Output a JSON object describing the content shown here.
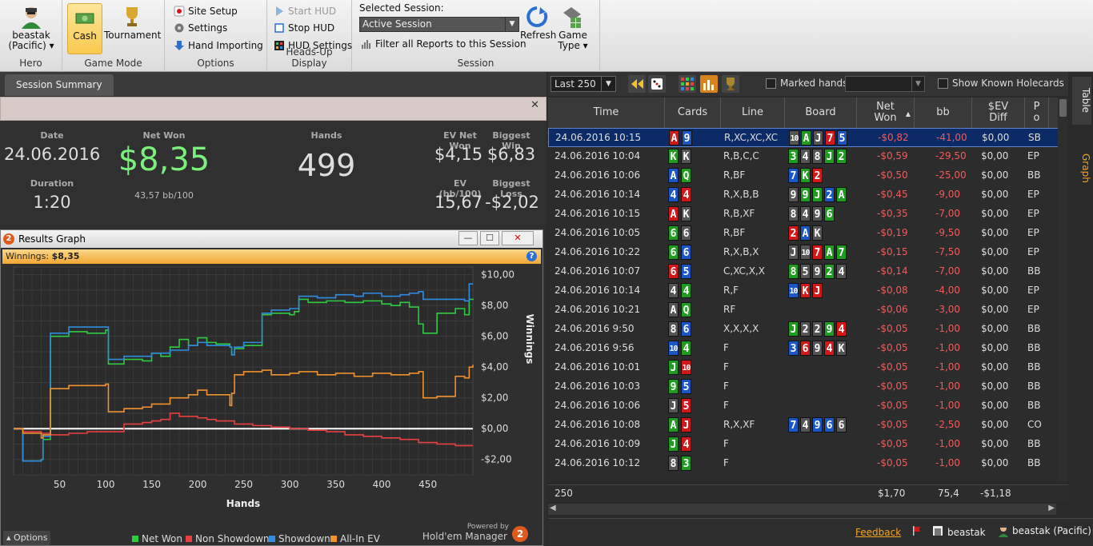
{
  "ribbon": {
    "hero": {
      "label": "beastak\n(Pacific)",
      "line1": "beastak",
      "line2": "(Pacific) ▾",
      "group": "Hero"
    },
    "game_mode": {
      "cash": "Cash",
      "tournament": "Tournament",
      "group": "Game Mode"
    },
    "options": {
      "site_setup": "Site Setup",
      "settings": "Settings",
      "hand_importing": "Hand Importing",
      "group": "Options"
    },
    "hud": {
      "start": "Start HUD",
      "stop": "Stop HUD",
      "settings": "HUD Settings",
      "group": "Heads-Up Display"
    },
    "session": {
      "selected_label": "Selected Session:",
      "selected_value": "Active Session",
      "filter": "Filter all Reports to this Session",
      "refresh": "Refresh",
      "game_type_1": "Game",
      "game_type_2": "Type ▾",
      "group": "Session"
    }
  },
  "left": {
    "tab": "Session Summary",
    "summary": {
      "date_label": "Date",
      "date": "24.06.2016",
      "duration_label": "Duration",
      "duration": "1:20",
      "net_won_label": "Net Won",
      "net_won": "$8,35",
      "bb100": "43,57 bb/100",
      "hands_label": "Hands",
      "hands": "499",
      "ev_net_won_label": "EV Net Won",
      "ev_net_won": "$4,15",
      "biggest_win_label": "Biggest Win",
      "biggest_win": "$6,83",
      "ev_bb100_label": "EV (bb/100)",
      "ev_bb100": "15,67",
      "biggest_loss_label": "Biggest Loss",
      "biggest_loss": "-$2,02"
    },
    "graph_window": {
      "title": "Results Graph",
      "winnings_label": "Winnings: ",
      "winnings_value": "$8,35",
      "options": "Options",
      "powered_by": "Powered by",
      "brand": "Hold'em Manager"
    }
  },
  "chart_data": {
    "type": "line",
    "xlabel": "Hands",
    "ylabel": "Winnings",
    "xlim": [
      0,
      499
    ],
    "ylim": [
      -3,
      10.5
    ],
    "x_ticks": [
      50,
      100,
      150,
      200,
      250,
      300,
      350,
      400,
      450
    ],
    "y_ticks": [
      10,
      8,
      6,
      4,
      2,
      0,
      -2
    ],
    "y_tick_labels": [
      "$10,00",
      "$8,00",
      "$6,00",
      "$4,00",
      "$2,00",
      "$0,00",
      "-$2,00"
    ],
    "legend_position": "bottom-right",
    "series": [
      {
        "name": "Net Won",
        "color": "#2ecc40",
        "x": [
          0,
          8,
          10,
          30,
          32,
          40,
          60,
          80,
          100,
          103,
          120,
          140,
          150,
          160,
          170,
          180,
          190,
          200,
          210,
          220,
          235,
          237,
          240,
          250,
          260,
          270,
          280,
          300,
          305,
          310,
          320,
          340,
          360,
          380,
          400,
          410,
          420,
          430,
          440,
          445,
          460,
          480,
          490,
          495,
          499
        ],
        "y": [
          0,
          0,
          -2.1,
          -2,
          -0.7,
          6,
          6.3,
          6.2,
          6.4,
          4.2,
          4.5,
          4.4,
          4.9,
          4.7,
          5.3,
          5.8,
          5.4,
          5.9,
          5.6,
          5.5,
          5.3,
          4.8,
          5.2,
          5.4,
          5.4,
          7.4,
          7.5,
          7.4,
          7.6,
          8.4,
          8.2,
          8.3,
          8.2,
          8.3,
          8.1,
          8.0,
          8.2,
          7.9,
          6.8,
          6.2,
          7.5,
          7.8,
          7.4,
          8.4,
          8.35
        ]
      },
      {
        "name": "Non Showdown",
        "color": "#e84040",
        "x": [
          0,
          10,
          30,
          40,
          60,
          80,
          100,
          120,
          140,
          150,
          160,
          170,
          180,
          200,
          210,
          220,
          240,
          260,
          280,
          300,
          320,
          340,
          360,
          380,
          400,
          420,
          440,
          460,
          480,
          499
        ],
        "y": [
          0,
          -0.2,
          -0.3,
          -0.4,
          -0.3,
          -0.2,
          -0.2,
          0.3,
          0.4,
          0.5,
          0.6,
          1.0,
          0.8,
          0.7,
          0.6,
          0.5,
          0.3,
          0.2,
          0.1,
          0.0,
          -0.1,
          -0.2,
          -0.4,
          -0.5,
          -0.6,
          -0.7,
          -0.9,
          -1.0,
          -1.1,
          -1.1
        ]
      },
      {
        "name": "Showdown",
        "color": "#2e8de0",
        "x": [
          0,
          8,
          10,
          30,
          32,
          40,
          60,
          80,
          100,
          103,
          120,
          140,
          150,
          170,
          190,
          200,
          210,
          235,
          237,
          240,
          250,
          270,
          280,
          300,
          310,
          330,
          350,
          370,
          380,
          400,
          420,
          430,
          440,
          445,
          470,
          490,
          495,
          499
        ],
        "y": [
          0,
          0,
          -2.1,
          -2,
          -0.5,
          6.2,
          6.6,
          6.6,
          6.6,
          4.5,
          4.7,
          4.7,
          4.9,
          5.1,
          5.4,
          5.6,
          5.4,
          5.3,
          4.8,
          5.3,
          5.6,
          7.5,
          7.7,
          7.8,
          8.6,
          8.5,
          8.7,
          8.6,
          8.8,
          8.6,
          8.7,
          8.8,
          8.9,
          8.4,
          8.4,
          8.3,
          9.4,
          9.4
        ]
      },
      {
        "name": "All-In EV",
        "color": "#f0922e",
        "x": [
          0,
          10,
          30,
          32,
          40,
          60,
          80,
          100,
          103,
          120,
          140,
          150,
          170,
          190,
          200,
          210,
          235,
          237,
          240,
          250,
          270,
          280,
          300,
          310,
          330,
          350,
          370,
          390,
          410,
          430,
          440,
          445,
          460,
          480,
          490,
          495,
          499
        ],
        "y": [
          0,
          -0.3,
          -0.6,
          -0.4,
          2.6,
          2.8,
          2.8,
          2.9,
          1.1,
          1.3,
          1.4,
          1.6,
          2.0,
          2.2,
          2.5,
          2.2,
          1.5,
          2.3,
          3.5,
          3.7,
          3.8,
          3.5,
          3.6,
          3.7,
          3.5,
          3.6,
          3.4,
          3.6,
          3.5,
          3.6,
          3.7,
          2.0,
          2.1,
          3.4,
          3.3,
          4.0,
          4.15
        ]
      }
    ]
  },
  "right": {
    "range": "Last 250",
    "marked_hands": "Marked hands",
    "show_known": "Show Known Holecards",
    "columns": {
      "time": "Time",
      "cards": "Cards",
      "line": "Line",
      "board": "Board",
      "net_won": "Net\nWon",
      "net_won_1": "Net",
      "net_won_2": "Won",
      "bb": "bb",
      "ev_1": "$EV",
      "ev_2": "Diff",
      "pos_1": "P",
      "pos_2": "o"
    },
    "rows": [
      {
        "time": "24.06.2016 10:15",
        "cards": [
          [
            "A",
            "h"
          ],
          [
            "9",
            "d"
          ]
        ],
        "line": "R,XC,XC,XC",
        "board": [
          [
            "10",
            "s"
          ],
          [
            "A",
            "c"
          ],
          [
            "J",
            "s"
          ],
          [
            "7",
            "h"
          ],
          [
            "5",
            "d"
          ]
        ],
        "net": "-$0,82",
        "bb": "-41,00",
        "ev": "$0,00",
        "pos": "SB",
        "sel": true
      },
      {
        "time": "24.06.2016 10:04",
        "cards": [
          [
            "K",
            "c"
          ],
          [
            "K",
            "s"
          ]
        ],
        "line": "R,B,C,C",
        "board": [
          [
            "3",
            "c"
          ],
          [
            "4",
            "s"
          ],
          [
            "8",
            "s"
          ],
          [
            "J",
            "c"
          ],
          [
            "2",
            "c"
          ]
        ],
        "net": "-$0,59",
        "bb": "-29,50",
        "ev": "$0,00",
        "pos": "EP"
      },
      {
        "time": "24.06.2016 10:06",
        "cards": [
          [
            "A",
            "d"
          ],
          [
            "Q",
            "c"
          ]
        ],
        "line": "R,BF",
        "board": [
          [
            "7",
            "d"
          ],
          [
            "K",
            "c"
          ],
          [
            "2",
            "h"
          ]
        ],
        "net": "-$0,50",
        "bb": "-25,00",
        "ev": "$0,00",
        "pos": "BB"
      },
      {
        "time": "24.06.2016 10:14",
        "cards": [
          [
            "4",
            "d"
          ],
          [
            "4",
            "h"
          ]
        ],
        "line": "R,X,B,B",
        "board": [
          [
            "9",
            "s"
          ],
          [
            "9",
            "c"
          ],
          [
            "J",
            "c"
          ],
          [
            "2",
            "d"
          ],
          [
            "A",
            "c"
          ]
        ],
        "net": "-$0,45",
        "bb": "-9,00",
        "ev": "$0,00",
        "pos": "EP"
      },
      {
        "time": "24.06.2016 10:15",
        "cards": [
          [
            "A",
            "h"
          ],
          [
            "K",
            "s"
          ]
        ],
        "line": "R,B,XF",
        "board": [
          [
            "8",
            "s"
          ],
          [
            "4",
            "s"
          ],
          [
            "9",
            "s"
          ],
          [
            "6",
            "c"
          ]
        ],
        "net": "-$0,35",
        "bb": "-7,00",
        "ev": "$0,00",
        "pos": "EP"
      },
      {
        "time": "24.06.2016 10:05",
        "cards": [
          [
            "6",
            "c"
          ],
          [
            "6",
            "s"
          ]
        ],
        "line": "R,BF",
        "board": [
          [
            "2",
            "h"
          ],
          [
            "A",
            "d"
          ],
          [
            "K",
            "s"
          ]
        ],
        "net": "-$0,19",
        "bb": "-9,50",
        "ev": "$0,00",
        "pos": "EP"
      },
      {
        "time": "24.06.2016 10:22",
        "cards": [
          [
            "6",
            "c"
          ],
          [
            "6",
            "d"
          ]
        ],
        "line": "R,X,B,X",
        "board": [
          [
            "J",
            "s"
          ],
          [
            "10",
            "s"
          ],
          [
            "7",
            "h"
          ],
          [
            "A",
            "c"
          ],
          [
            "7",
            "c"
          ]
        ],
        "net": "-$0,15",
        "bb": "-7,50",
        "ev": "$0,00",
        "pos": "EP"
      },
      {
        "time": "24.06.2016 10:07",
        "cards": [
          [
            "6",
            "h"
          ],
          [
            "5",
            "d"
          ]
        ],
        "line": "C,XC,X,X",
        "board": [
          [
            "8",
            "c"
          ],
          [
            "5",
            "s"
          ],
          [
            "9",
            "s"
          ],
          [
            "2",
            "c"
          ],
          [
            "4",
            "s"
          ]
        ],
        "net": "-$0,14",
        "bb": "-7,00",
        "ev": "$0,00",
        "pos": "BB"
      },
      {
        "time": "24.06.2016 10:14",
        "cards": [
          [
            "4",
            "s"
          ],
          [
            "4",
            "c"
          ]
        ],
        "line": "R,F",
        "board": [
          [
            "10",
            "d"
          ],
          [
            "K",
            "h"
          ],
          [
            "J",
            "h"
          ]
        ],
        "net": "-$0,08",
        "bb": "-4,00",
        "ev": "$0,00",
        "pos": "EP"
      },
      {
        "time": "24.06.2016 10:21",
        "cards": [
          [
            "A",
            "s"
          ],
          [
            "Q",
            "c"
          ]
        ],
        "line": "RF",
        "board": [],
        "net": "-$0,06",
        "bb": "-3,00",
        "ev": "$0,00",
        "pos": "EP"
      },
      {
        "time": "24.06.2016 9:50",
        "cards": [
          [
            "8",
            "s"
          ],
          [
            "6",
            "d"
          ]
        ],
        "line": "X,X,X,X",
        "board": [
          [
            "J",
            "c"
          ],
          [
            "2",
            "s"
          ],
          [
            "2",
            "s"
          ],
          [
            "9",
            "c"
          ],
          [
            "4",
            "h"
          ]
        ],
        "net": "-$0,05",
        "bb": "-1,00",
        "ev": "$0,00",
        "pos": "BB"
      },
      {
        "time": "24.06.2016 9:56",
        "cards": [
          [
            "10",
            "d"
          ],
          [
            "4",
            "c"
          ]
        ],
        "line": "F",
        "board": [
          [
            "3",
            "d"
          ],
          [
            "6",
            "h"
          ],
          [
            "9",
            "s"
          ],
          [
            "4",
            "h"
          ],
          [
            "K",
            "s"
          ]
        ],
        "net": "-$0,05",
        "bb": "-1,00",
        "ev": "$0,00",
        "pos": "BB"
      },
      {
        "time": "24.06.2016 10:01",
        "cards": [
          [
            "J",
            "c"
          ],
          [
            "10",
            "h"
          ]
        ],
        "line": "F",
        "board": [],
        "net": "-$0,05",
        "bb": "-1,00",
        "ev": "$0,00",
        "pos": "BB"
      },
      {
        "time": "24.06.2016 10:03",
        "cards": [
          [
            "9",
            "c"
          ],
          [
            "5",
            "d"
          ]
        ],
        "line": "F",
        "board": [],
        "net": "-$0,05",
        "bb": "-1,00",
        "ev": "$0,00",
        "pos": "BB"
      },
      {
        "time": "24.06.2016 10:06",
        "cards": [
          [
            "J",
            "s"
          ],
          [
            "5",
            "h"
          ]
        ],
        "line": "F",
        "board": [],
        "net": "-$0,05",
        "bb": "-1,00",
        "ev": "$0,00",
        "pos": "BB"
      },
      {
        "time": "24.06.2016 10:08",
        "cards": [
          [
            "A",
            "c"
          ],
          [
            "J",
            "h"
          ]
        ],
        "line": "R,X,XF",
        "board": [
          [
            "7",
            "d"
          ],
          [
            "4",
            "s"
          ],
          [
            "9",
            "d"
          ],
          [
            "6",
            "d"
          ],
          [
            "6",
            "s"
          ]
        ],
        "net": "-$0,05",
        "bb": "-2,50",
        "ev": "$0,00",
        "pos": "CO"
      },
      {
        "time": "24.06.2016 10:09",
        "cards": [
          [
            "J",
            "c"
          ],
          [
            "4",
            "h"
          ]
        ],
        "line": "F",
        "board": [],
        "net": "-$0,05",
        "bb": "-1,00",
        "ev": "$0,00",
        "pos": "BB"
      },
      {
        "time": "24.06.2016 10:12",
        "cards": [
          [
            "8",
            "s"
          ],
          [
            "3",
            "c"
          ]
        ],
        "line": "F",
        "board": [],
        "net": "-$0,05",
        "bb": "-1,00",
        "ev": "$0,00",
        "pos": "BB"
      }
    ],
    "totals": {
      "count": "250",
      "net": "$1,70",
      "bb": "75,4",
      "ev": "-$1,18"
    },
    "side_tabs": {
      "table": "Table",
      "graph": "Graph"
    },
    "status": {
      "feedback": "Feedback",
      "user": "beastak",
      "hero": "beastak (Pacific)"
    }
  },
  "colors": {
    "hearts": "#d01818",
    "diamonds": "#1a56c4",
    "clubs": "#1f9c1f",
    "spades": "#555555",
    "accent": "#f5a623",
    "net_won_green": "#7cf07c",
    "negative": "#f05c5c"
  }
}
